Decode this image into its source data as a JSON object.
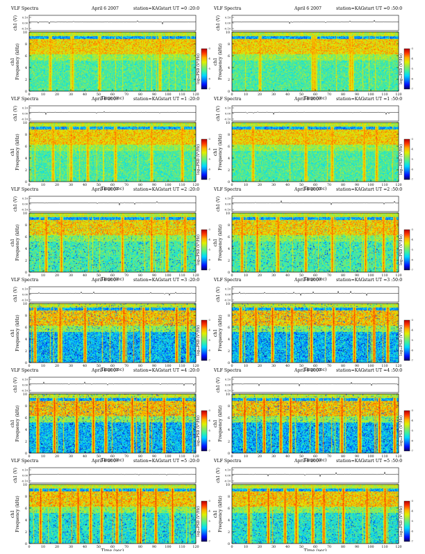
{
  "colors": {
    "colormap": [
      "#08005c",
      "#0010ff",
      "#0078ff",
      "#00d8ff",
      "#3cf0a0",
      "#8ee85a",
      "#dff000",
      "#ffb000",
      "#ff3800",
      "#b80000"
    ],
    "trace": "#000000",
    "frame": "#000000"
  },
  "common": {
    "title_left": "VLF  Spectra",
    "date": "April 6 2007",
    "station": "station=KAG",
    "start_prefix": "start  UT",
    "ch_label": "ch1 (V)",
    "ch_ticks": [
      "0.10",
      "0.00",
      "-0.10"
    ],
    "freq_label": "Frequency (kHz)",
    "ch1_prefix": "ch1",
    "freq_ticks": [
      0,
      2,
      4,
      6,
      8,
      10
    ],
    "time_label": "Time (sec)",
    "time_ticks": [
      0,
      10,
      20,
      30,
      40,
      50,
      60,
      70,
      80,
      90,
      100,
      110,
      120
    ],
    "cbar_label": "log₁₀PSD (V²/Hz)",
    "cbar_ticks": [
      "-3",
      "-4",
      "-5",
      "-6",
      "-7"
    ]
  },
  "chart_data": [
    {
      "type": "heatmap",
      "ut": "0 :20:0",
      "col": 0,
      "row": 0,
      "lines": [
        15.0,
        31.0,
        50.5,
        94.0
      ],
      "strength": 0.55,
      "profile": "quiet"
    },
    {
      "type": "heatmap",
      "ut": "0 :50:0",
      "col": 1,
      "row": 0,
      "lines": [
        20.0,
        58.0,
        59.5,
        85.0,
        86.5
      ],
      "strength": 0.55,
      "profile": "quiet"
    },
    {
      "type": "heatmap",
      "ut": "1 :20:0",
      "col": 0,
      "row": 1,
      "lines": [
        17.0,
        30.0,
        42.0,
        62.0,
        88.0,
        110.0
      ],
      "strength": 0.6,
      "profile": "quiet"
    },
    {
      "type": "heatmap",
      "ut": "1 :50:0",
      "col": 1,
      "row": 1,
      "lines": [
        15.0,
        53.0,
        72.0,
        95.0,
        104.0
      ],
      "strength": 0.6,
      "profile": "quiet"
    },
    {
      "type": "heatmap",
      "ut": "2 :20:0",
      "col": 0,
      "row": 2,
      "lines": [
        12.0,
        23.0,
        67.0,
        88.0,
        99.0,
        112.0
      ],
      "strength": 0.7,
      "profile": "active"
    },
    {
      "type": "heatmap",
      "ut": "2 :50:0",
      "col": 1,
      "row": 2,
      "lines": [
        7.0,
        18.0,
        33.0,
        53.0,
        72.0,
        96.0,
        109.0,
        117.0
      ],
      "strength": 0.72,
      "profile": "active"
    },
    {
      "type": "heatmap",
      "ut": "3 :20:0",
      "col": 0,
      "row": 3,
      "lines": [
        4.0,
        22.0,
        40.0,
        68.0,
        82.0,
        106.0,
        114.0
      ],
      "strength": 0.8,
      "profile": "strong"
    },
    {
      "type": "heatmap",
      "ut": "3 :50:0",
      "col": 1,
      "row": 3,
      "lines": [
        6.0,
        17.0,
        29.0,
        43.0,
        57.0,
        73.0,
        88.0,
        102.0,
        112.0
      ],
      "strength": 0.82,
      "profile": "strong"
    },
    {
      "type": "heatmap",
      "ut": "4 :20:0",
      "col": 0,
      "row": 4,
      "lines": [
        6.0,
        18.0,
        34.0,
        46.0,
        55.0,
        74.0,
        85.0,
        97.0,
        111.0
      ],
      "strength": 0.85,
      "profile": "strong"
    },
    {
      "type": "heatmap",
      "ut": "4 :50:0",
      "col": 1,
      "row": 4,
      "lines": [
        9.0,
        23.0,
        35.0,
        42.0,
        61.0,
        79.0,
        92.0,
        106.0,
        117.0
      ],
      "strength": 0.85,
      "profile": "strong"
    },
    {
      "type": "heatmap",
      "ut": "5 :20:0",
      "col": 0,
      "row": 5,
      "lines": [
        8.0,
        22.0,
        35.0,
        44.0,
        52.0,
        63.0,
        78.0,
        80.0,
        91.0,
        103.0
      ],
      "strength": 0.82,
      "profile": "mixed"
    },
    {
      "type": "heatmap",
      "ut": "5 :50:0",
      "col": 1,
      "row": 5,
      "lines": [
        12.0,
        26.0,
        38.0,
        46.0,
        58.0,
        66.0,
        80.0,
        97.0,
        110.0
      ],
      "strength": 0.8,
      "profile": "mixed"
    }
  ]
}
